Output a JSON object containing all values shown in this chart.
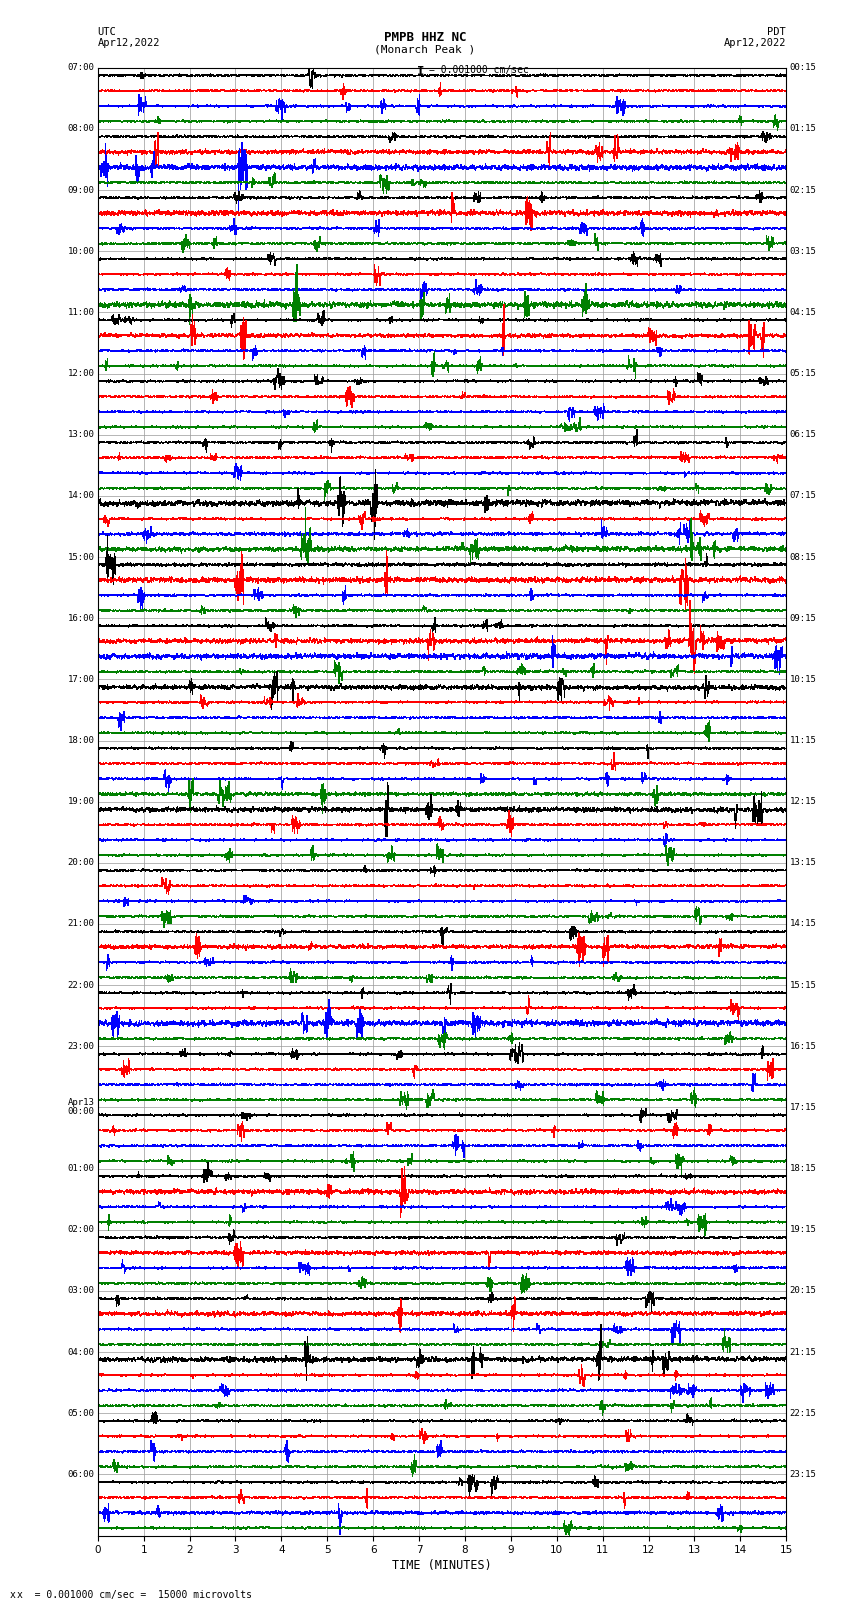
{
  "title_line1": "PMPB HHZ NC",
  "title_line2": "(Monarch Peak )",
  "scale_label": "= 0.001000 cm/sec",
  "bottom_label": "x  = 0.001000 cm/sec =  15000 microvolts",
  "xlabel": "TIME (MINUTES)",
  "left_header": "UTC",
  "left_date": "Apr12,2022",
  "right_header": "PDT",
  "right_date": "Apr12,2022",
  "num_rows": 24,
  "traces_per_row": 4,
  "minutes_per_row": 15,
  "colors": [
    "black",
    "red",
    "blue",
    "green"
  ],
  "bg_color": "white",
  "figwidth": 8.5,
  "figheight": 16.13,
  "left_times": [
    "07:00",
    "08:00",
    "09:00",
    "10:00",
    "11:00",
    "12:00",
    "13:00",
    "14:00",
    "15:00",
    "16:00",
    "17:00",
    "18:00",
    "19:00",
    "20:00",
    "21:00",
    "22:00",
    "23:00",
    "Apr13\n00:00",
    "01:00",
    "02:00",
    "03:00",
    "04:00",
    "05:00",
    "06:00"
  ],
  "right_times": [
    "00:15",
    "01:15",
    "02:15",
    "03:15",
    "04:15",
    "05:15",
    "06:15",
    "07:15",
    "08:15",
    "09:15",
    "10:15",
    "11:15",
    "12:15",
    "13:15",
    "14:15",
    "15:15",
    "16:15",
    "17:15",
    "18:15",
    "19:15",
    "20:15",
    "21:15",
    "22:15",
    "23:15"
  ]
}
